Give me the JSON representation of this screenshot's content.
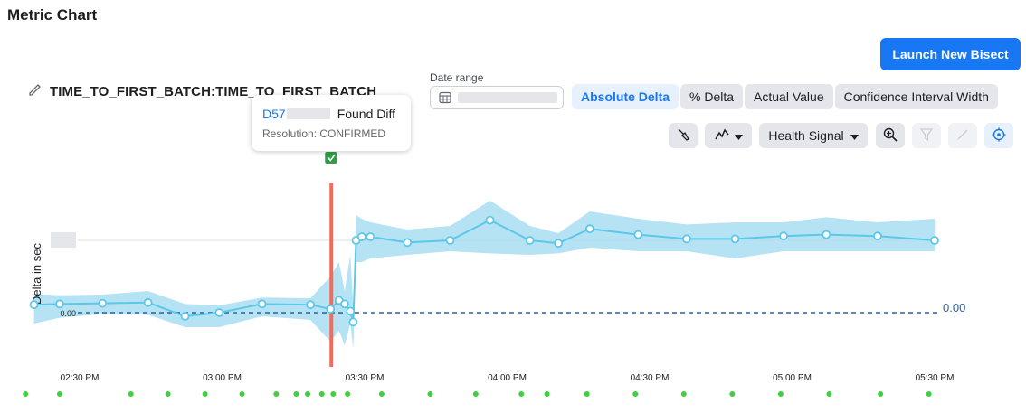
{
  "page": {
    "title": "Metric Chart"
  },
  "launch_button": "Launch New Bisect",
  "metric": {
    "name": "TIME_TO_FIRST_BATCH:TIME_TO_FIRST_BATCH"
  },
  "date_range": {
    "label": "Date range"
  },
  "view_modes": [
    {
      "label": "Absolute Delta",
      "active": true
    },
    {
      "label": "% Delta",
      "active": false
    },
    {
      "label": "Actual Value",
      "active": false
    },
    {
      "label": "Confidence Interval Width",
      "active": false
    }
  ],
  "toolbar": {
    "health_signal_label": "Health Signal"
  },
  "tooltip": {
    "diff_prefix": "D57",
    "status": "Found Diff",
    "resolution": "Resolution: CONFIRMED"
  },
  "colors": {
    "series": "#5bc8ea",
    "band": "#a9def1",
    "marker": "#f26a5a",
    "baseline": "#2f5f9e",
    "annotation": "#3fcf3f",
    "accent": "#1877f2"
  },
  "chart_data": {
    "type": "line",
    "ylabel": "Delta in sec",
    "xticks": [
      "02:30 PM",
      "03:00 PM",
      "03:30 PM",
      "04:00 PM",
      "04:30 PM",
      "05:00 PM",
      "05:30 PM"
    ],
    "y_tick_label": "0.00",
    "baseline_label": "0.00",
    "baseline_value": 0,
    "marker_time": "03:23 PM",
    "series": [
      {
        "points": [
          {
            "t": 14.34,
            "y": 0.11,
            "lo": -0.15,
            "hi": 0.26
          },
          {
            "t": 14.43,
            "y": 0.12,
            "lo": -0.07,
            "hi": 0.24
          },
          {
            "t": 14.58,
            "y": 0.13,
            "lo": -0.02,
            "hi": 0.25
          },
          {
            "t": 14.74,
            "y": 0.14,
            "lo": -0.03,
            "hi": 0.3
          },
          {
            "t": 14.87,
            "y": -0.05,
            "lo": -0.2,
            "hi": 0.12
          },
          {
            "t": 14.99,
            "y": 0.0,
            "lo": -0.2,
            "hi": 0.1
          },
          {
            "t": 15.14,
            "y": 0.12,
            "lo": -0.05,
            "hi": 0.21
          },
          {
            "t": 15.31,
            "y": 0.11,
            "lo": -0.1,
            "hi": 0.2
          },
          {
            "t": 15.38,
            "y": 0.05,
            "lo": -0.4,
            "hi": 0.5
          },
          {
            "t": 15.41,
            "y": 0.17,
            "lo": -0.25,
            "hi": 0.7
          },
          {
            "t": 15.43,
            "y": 0.12,
            "lo": -0.45,
            "hi": 0.3
          },
          {
            "t": 15.45,
            "y": 0.02,
            "lo": -0.15,
            "hi": 0.8
          },
          {
            "t": 15.46,
            "y": -0.13,
            "lo": -0.5,
            "hi": 0.1
          },
          {
            "t": 15.47,
            "y": 1.0,
            "lo": 0.7,
            "hi": 1.35
          },
          {
            "t": 15.49,
            "y": 1.05,
            "lo": 0.7,
            "hi": 1.3
          },
          {
            "t": 15.52,
            "y": 1.05,
            "lo": 0.75,
            "hi": 1.25
          },
          {
            "t": 15.65,
            "y": 0.97,
            "lo": 0.8,
            "hi": 1.15
          },
          {
            "t": 15.8,
            "y": 1.0,
            "lo": 0.85,
            "hi": 1.2
          },
          {
            "t": 15.94,
            "y": 1.28,
            "lo": 0.82,
            "hi": 1.55
          },
          {
            "t": 16.08,
            "y": 1.0,
            "lo": 0.8,
            "hi": 1.2
          },
          {
            "t": 16.18,
            "y": 0.96,
            "lo": 0.82,
            "hi": 1.1
          },
          {
            "t": 16.29,
            "y": 1.16,
            "lo": 0.9,
            "hi": 1.4
          },
          {
            "t": 16.46,
            "y": 1.08,
            "lo": 0.85,
            "hi": 1.3
          },
          {
            "t": 16.63,
            "y": 1.02,
            "lo": 0.85,
            "hi": 1.22
          },
          {
            "t": 16.8,
            "y": 1.02,
            "lo": 0.75,
            "hi": 1.25
          },
          {
            "t": 16.97,
            "y": 1.06,
            "lo": 0.85,
            "hi": 1.25
          },
          {
            "t": 17.12,
            "y": 1.08,
            "lo": 0.85,
            "hi": 1.32
          },
          {
            "t": 17.3,
            "y": 1.06,
            "lo": 0.85,
            "hi": 1.25
          },
          {
            "t": 17.5,
            "y": 1.0,
            "lo": 0.85,
            "hi": 1.3
          }
        ]
      }
    ],
    "annotations_t": [
      14.31,
      14.43,
      14.68,
      14.81,
      14.94,
      15.07,
      15.19,
      15.26,
      15.3,
      15.35,
      15.39,
      15.44,
      15.56,
      15.73,
      15.89,
      16.05,
      16.14,
      16.28,
      16.45,
      16.62,
      16.79,
      16.96,
      17.13,
      17.31,
      17.48
    ]
  }
}
